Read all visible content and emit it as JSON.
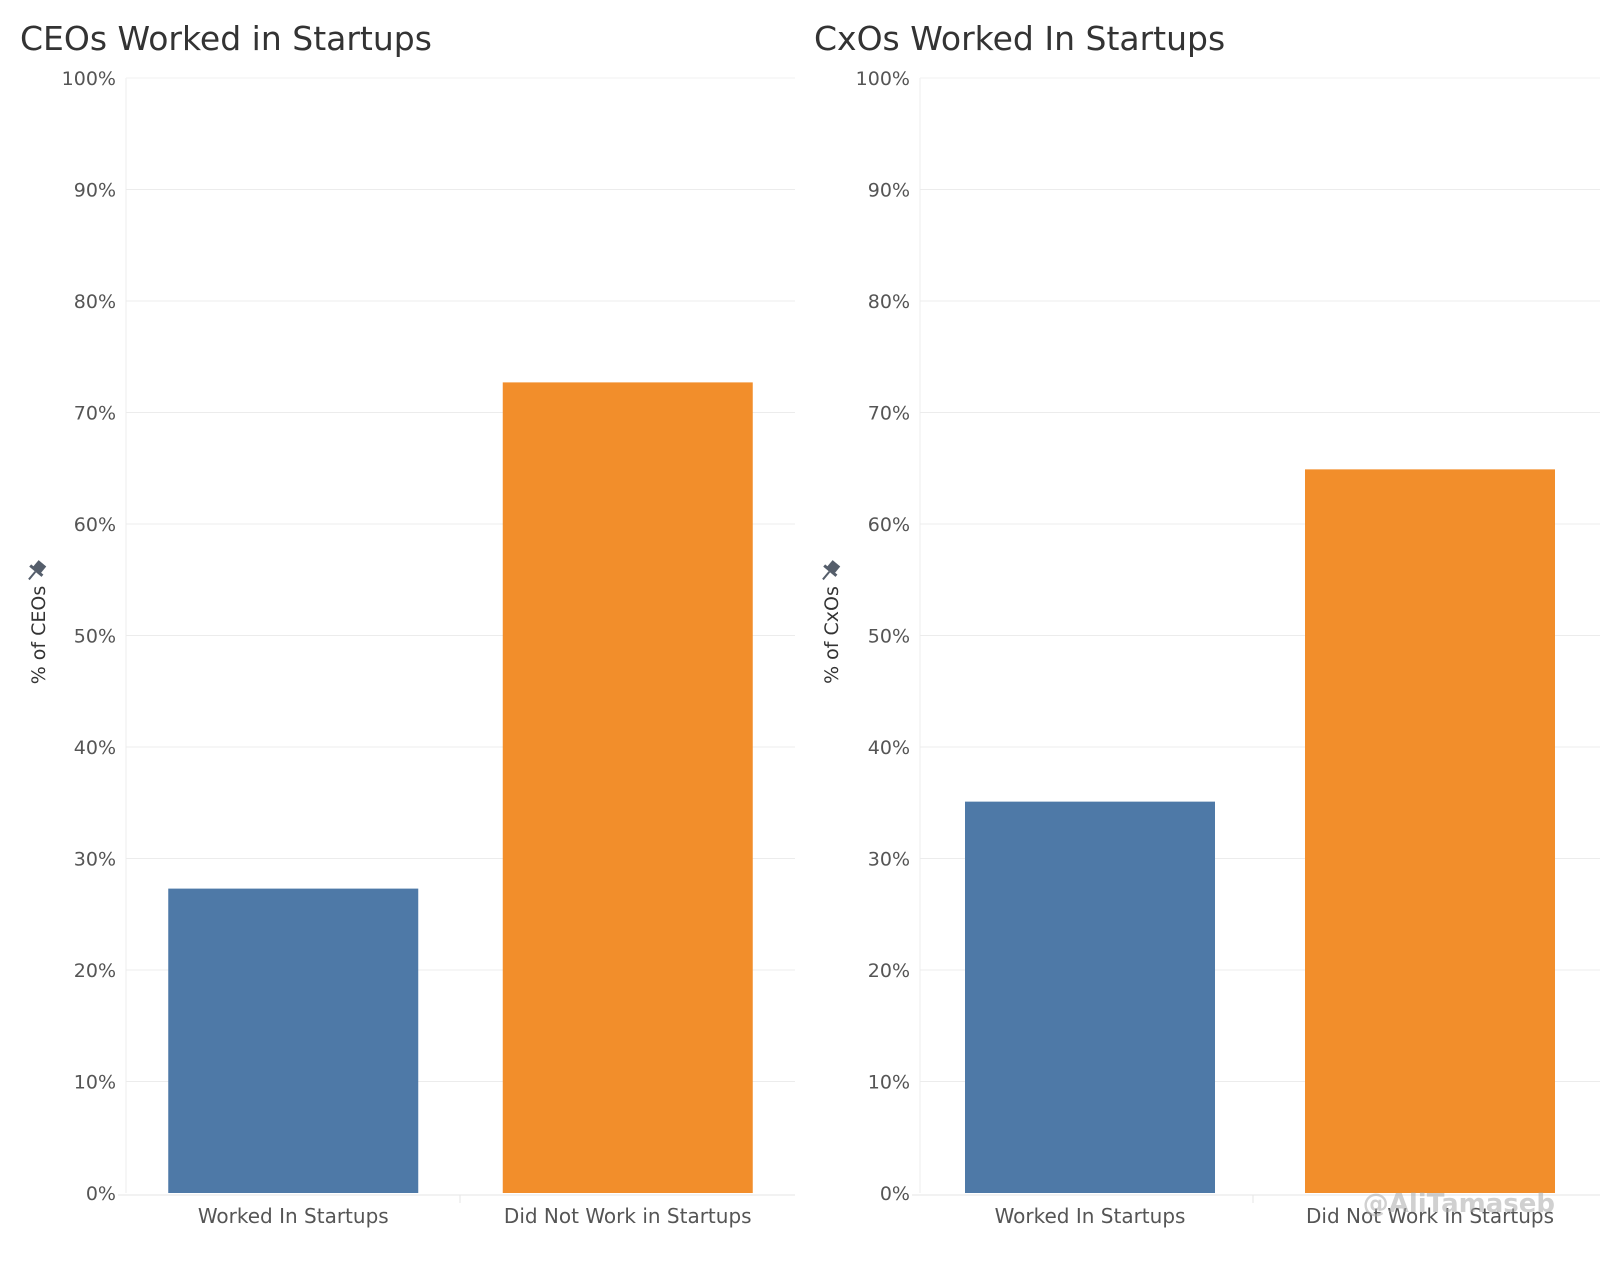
{
  "chart_data": [
    {
      "type": "bar",
      "title": "CEOs Worked in Startups",
      "ylabel": "% of CEOs",
      "xlabel": "",
      "categories": [
        "Worked In Startups",
        "Did Not Work in Startups"
      ],
      "values": [
        27.3,
        72.7
      ],
      "ylim": [
        0,
        100
      ],
      "yticks": [
        "0%",
        "10%",
        "20%",
        "30%",
        "40%",
        "50%",
        "60%",
        "70%",
        "80%",
        "90%",
        "100%"
      ],
      "grid": true,
      "colors": [
        "#4e79a7",
        "#f28e2b"
      ]
    },
    {
      "type": "bar",
      "title": "CxOs Worked In Startups",
      "ylabel": "% of CxOs",
      "xlabel": "",
      "categories": [
        "Worked In Startups",
        "Did Not Work In Startups"
      ],
      "values": [
        35.1,
        64.9
      ],
      "ylim": [
        0,
        100
      ],
      "yticks": [
        "0%",
        "10%",
        "20%",
        "30%",
        "40%",
        "50%",
        "60%",
        "70%",
        "80%",
        "90%",
        "100%"
      ],
      "grid": true,
      "colors": [
        "#4e79a7",
        "#f28e2b"
      ]
    }
  ],
  "watermark": "@AliTamaseb",
  "icons": {
    "pin": "pin-icon"
  }
}
